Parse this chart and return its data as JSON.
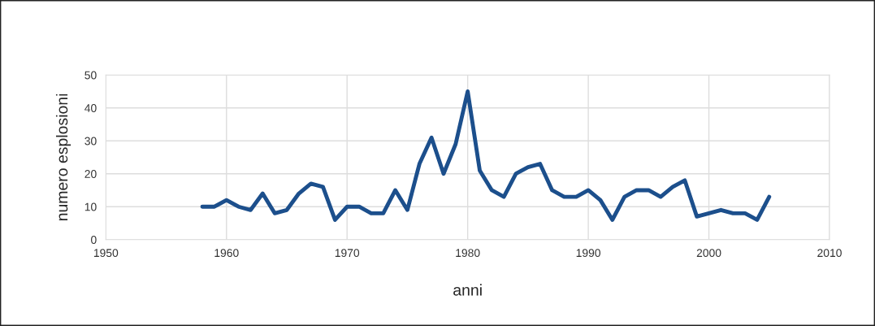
{
  "chart_data": {
    "type": "line",
    "xlabel": "anni",
    "ylabel": "numero esplosioni",
    "x": [
      1958,
      1959,
      1960,
      1961,
      1962,
      1963,
      1964,
      1965,
      1966,
      1967,
      1968,
      1969,
      1970,
      1971,
      1972,
      1973,
      1974,
      1975,
      1976,
      1977,
      1978,
      1979,
      1980,
      1981,
      1982,
      1983,
      1984,
      1985,
      1986,
      1987,
      1988,
      1989,
      1990,
      1991,
      1992,
      1993,
      1994,
      1995,
      1996,
      1997,
      1998,
      1999,
      2000,
      2001,
      2002,
      2003,
      2004,
      2005
    ],
    "series": [
      {
        "color": "#1c4f8c",
        "values": [
          10,
          10,
          12,
          10,
          9,
          14,
          8,
          9,
          14,
          17,
          16,
          6,
          10,
          10,
          8,
          8,
          15,
          9,
          23,
          31,
          20,
          29,
          45,
          21,
          15,
          13,
          20,
          22,
          23,
          15,
          13,
          13,
          15,
          12,
          6,
          13,
          15,
          15,
          13,
          16,
          18,
          7,
          8,
          9,
          8,
          8,
          6,
          13
        ]
      }
    ],
    "xlim": [
      1950,
      2010
    ],
    "xticks": [
      1950,
      1960,
      1970,
      1980,
      1990,
      2000,
      2010
    ],
    "ylim": [
      0,
      50
    ],
    "yticks": [
      0,
      10,
      20,
      30,
      40,
      50
    ],
    "grid": true,
    "marker": "none",
    "line_style": "solid"
  }
}
